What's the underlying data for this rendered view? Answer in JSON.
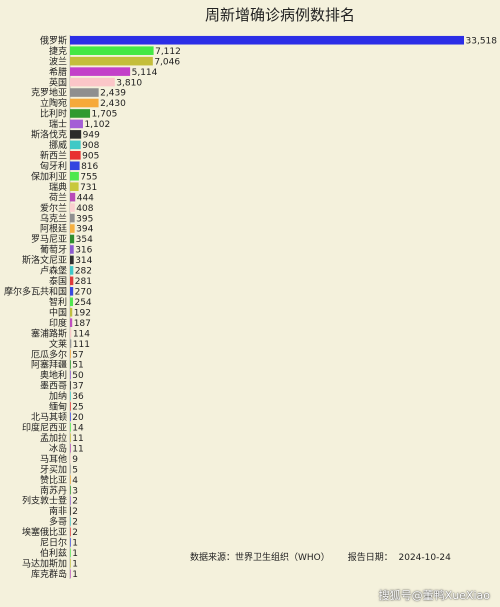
{
  "chart_data": {
    "type": "bar",
    "orientation": "horizontal",
    "title": "周新增确诊病例数排名",
    "categories": [
      "俄罗斯",
      "捷克",
      "波兰",
      "希腊",
      "英国",
      "克罗地亚",
      "立陶宛",
      "比利时",
      "瑞士",
      "斯洛伐克",
      "挪威",
      "新西兰",
      "匈牙利",
      "保加利亚",
      "瑞典",
      "荷兰",
      "爱尔兰",
      "乌克兰",
      "阿根廷",
      "罗马尼亚",
      "葡萄牙",
      "斯洛文尼亚",
      "卢森堡",
      "泰国",
      "摩尔多瓦共和国",
      "智利",
      "中国",
      "印度",
      "塞浦路斯",
      "文莱",
      "厄瓜多尔",
      "阿塞拜疆",
      "奥地利",
      "墨西哥",
      "加纳",
      "缅甸",
      "北马其顿",
      "印度尼西亚",
      "孟加拉",
      "冰岛",
      "马耳他",
      "牙买加",
      "赞比亚",
      "南苏丹",
      "列支敦士登",
      "南非",
      "多哥",
      "埃塞俄比亚",
      "尼日尔",
      "伯利兹",
      "马达加斯加",
      "库克群岛"
    ],
    "values": [
      33518,
      7112,
      7046,
      5114,
      3810,
      2439,
      2430,
      1705,
      1102,
      949,
      908,
      905,
      816,
      755,
      731,
      444,
      408,
      395,
      394,
      354,
      316,
      314,
      282,
      281,
      270,
      254,
      192,
      187,
      114,
      111,
      57,
      51,
      50,
      37,
      36,
      25,
      20,
      14,
      11,
      11,
      9,
      5,
      4,
      3,
      2,
      2,
      2,
      2,
      1,
      1,
      1,
      1
    ],
    "colors": [
      "#2b2ee6",
      "#44e844",
      "#c4be3a",
      "#c340c9",
      "#fbc6c8",
      "#8f8f8f",
      "#f6a93a",
      "#2f9a2f",
      "#a45ed6",
      "#2b2b2b",
      "#3fc9c6",
      "#e83030",
      "#3545e0",
      "#4ee84e",
      "#c8c83c",
      "#b84ab8",
      "#fad0d0",
      "#909090",
      "#f5b040",
      "#2e8e2e",
      "#8c5ad0",
      "#303030",
      "#40c8c8",
      "#e03a3a",
      "#3848e0",
      "#50e850",
      "#c0c040",
      "#c050c0",
      "#f8c8c8",
      "#989898",
      "#f0a840",
      "#309830",
      "#9060d0",
      "#282828",
      "#48c8c8",
      "#e04040",
      "#4050e0",
      "#58e858",
      "#c8c048",
      "#b858b8",
      "#f8d0d0",
      "#a0a0a0",
      "#f0b048",
      "#389838",
      "#9868d0",
      "#282828",
      "#50c8c8",
      "#e04848",
      "#4858e0",
      "#60e860",
      "#c8c850",
      "#c060c0"
    ],
    "xlim": [
      0,
      33518
    ],
    "xlabel": "",
    "ylabel": "",
    "grid": false
  },
  "footer": {
    "source": "数据来源：世界卫生组织（WHO）",
    "date": "报告日期：  2024-10-24"
  },
  "watermark": "搜狐号@董鸭XueXiao"
}
